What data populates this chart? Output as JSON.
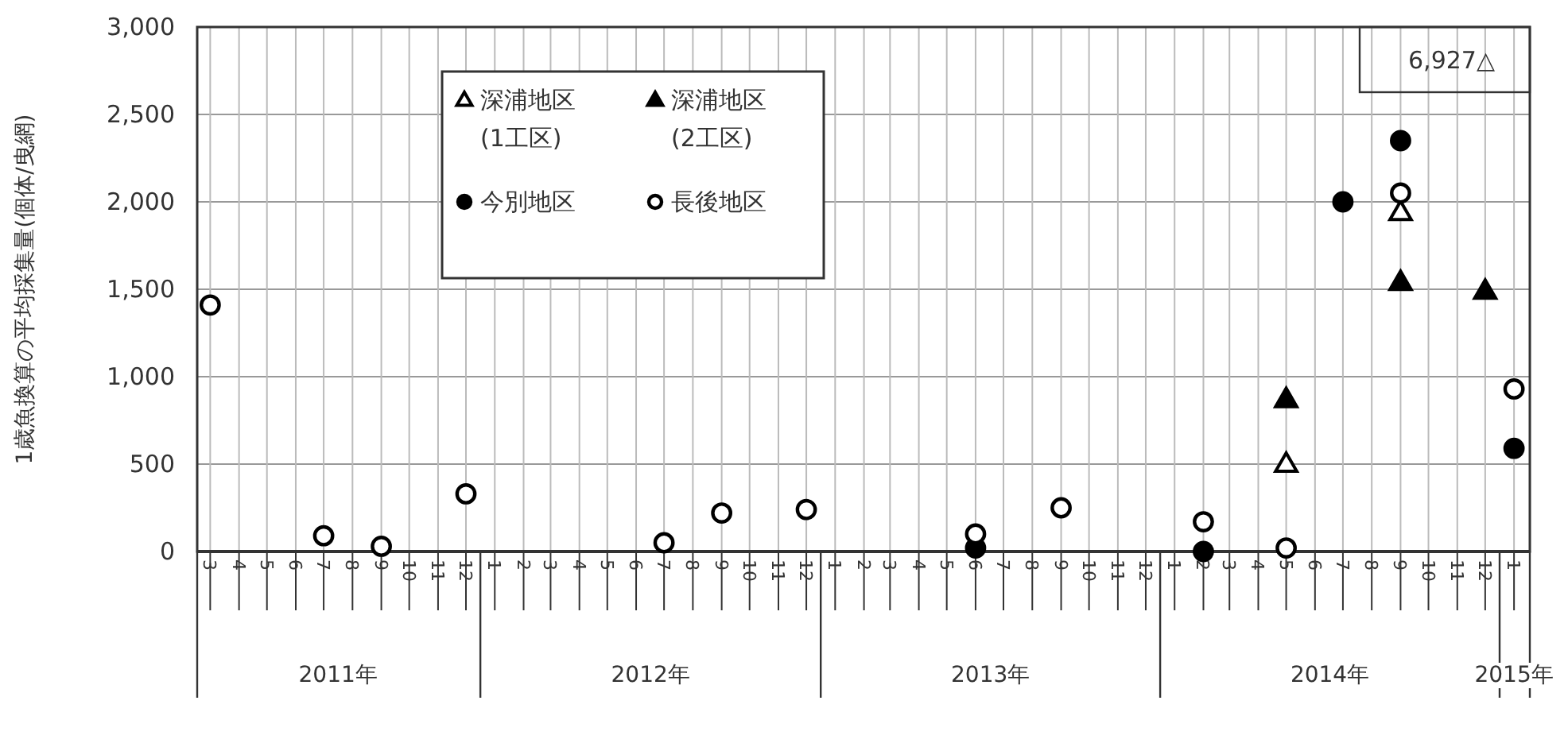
{
  "chart_data": {
    "type": "scatter",
    "ylabel": "1歳魚換算の平均採集量(個体/曳網)",
    "xlim": [
      "2011-03-01",
      "2015-02-01"
    ],
    "xticks": [
      {
        "value": "2011-03-15",
        "label": "3"
      },
      {
        "value": "2011-04-15",
        "label": "4"
      },
      {
        "value": "2011-05-15",
        "label": "5"
      },
      {
        "value": "2011-06-15",
        "label": "6"
      },
      {
        "value": "2011-07-15",
        "label": "7"
      },
      {
        "value": "2011-08-15",
        "label": "8"
      },
      {
        "value": "2011-09-15",
        "label": "9"
      },
      {
        "value": "2011-10-15",
        "label": "10"
      },
      {
        "value": "2011-11-15",
        "label": "11"
      },
      {
        "value": "2011-12-15",
        "label": "12"
      },
      {
        "value": "2012-01-15",
        "label": "1"
      },
      {
        "value": "2012-02-15",
        "label": "2"
      },
      {
        "value": "2012-03-15",
        "label": "3"
      },
      {
        "value": "2012-04-15",
        "label": "4"
      },
      {
        "value": "2012-05-15",
        "label": "5"
      },
      {
        "value": "2012-06-15",
        "label": "6"
      },
      {
        "value": "2012-07-15",
        "label": "7"
      },
      {
        "value": "2012-08-15",
        "label": "8"
      },
      {
        "value": "2012-09-15",
        "label": "9"
      },
      {
        "value": "2012-10-15",
        "label": "10"
      },
      {
        "value": "2012-11-15",
        "label": "11"
      },
      {
        "value": "2012-12-15",
        "label": "12"
      },
      {
        "value": "2013-01-15",
        "label": "1"
      },
      {
        "value": "2013-02-15",
        "label": "2"
      },
      {
        "value": "2013-03-15",
        "label": "3"
      },
      {
        "value": "2013-04-15",
        "label": "4"
      },
      {
        "value": "2013-05-15",
        "label": "5"
      },
      {
        "value": "2013-06-15",
        "label": "6"
      },
      {
        "value": "2013-07-15",
        "label": "7"
      },
      {
        "value": "2013-08-15",
        "label": "8"
      },
      {
        "value": "2013-09-15",
        "label": "9"
      },
      {
        "value": "2013-10-15",
        "label": "10"
      },
      {
        "value": "2013-11-15",
        "label": "11"
      },
      {
        "value": "2013-12-15",
        "label": "12"
      },
      {
        "value": "2014-01-15",
        "label": "1"
      },
      {
        "value": "2014-02-15",
        "label": "2"
      },
      {
        "value": "2014-03-15",
        "label": "3"
      },
      {
        "value": "2014-04-15",
        "label": "4"
      },
      {
        "value": "2014-05-15",
        "label": "5"
      },
      {
        "value": "2014-06-15",
        "label": "6"
      },
      {
        "value": "2014-07-15",
        "label": "7"
      },
      {
        "value": "2014-08-15",
        "label": "8"
      },
      {
        "value": "2014-09-15",
        "label": "9"
      },
      {
        "value": "2014-10-15",
        "label": "10"
      },
      {
        "value": "2014-11-15",
        "label": "11"
      },
      {
        "value": "2014-12-15",
        "label": "12"
      },
      {
        "value": "2015-01-15",
        "label": "1"
      }
    ],
    "ylim": [
      0,
      3000
    ],
    "yticks": [
      {
        "value": 0,
        "label": "0"
      },
      {
        "value": 500,
        "label": "500"
      },
      {
        "value": 1000,
        "label": "1,000"
      },
      {
        "value": 1500,
        "label": "1,500"
      },
      {
        "value": 2000,
        "label": "2,000"
      },
      {
        "value": 2500,
        "label": "2,500"
      },
      {
        "value": 3000,
        "label": "3,000"
      }
    ],
    "grid": true,
    "legend": "top",
    "annotations": [
      "2011年",
      "2012年",
      "2013年",
      "2014年",
      "2015年",
      "6,927△"
    ],
    "series": [
      {
        "name": "深浦地区 (1工区)",
        "marker": "triangle",
        "color": "#ffffff",
        "x": [
          "2014-05-15",
          "2014-09-15"
        ],
        "values": [
          500,
          1940
        ]
      },
      {
        "name": "深浦地区 (2工区)",
        "marker": "triangle",
        "color": "#000000",
        "x": [
          "2014-05-15",
          "2014-09-15",
          "2014-12-15"
        ],
        "values": [
          870,
          1540,
          1490
        ]
      },
      {
        "name": "今別地区",
        "marker": "circle",
        "color": "#000000",
        "x": [
          "2013-06-15",
          "2014-02-15",
          "2014-07-15",
          "2014-09-15",
          "2015-01-15"
        ],
        "values": [
          20,
          0,
          2000,
          2350,
          590
        ]
      },
      {
        "name": "長後地区",
        "marker": "circle",
        "color": "#ffffff",
        "x": [
          "2011-03-15",
          "2011-07-15",
          "2011-09-15",
          "2011-12-15",
          "2012-07-15",
          "2012-09-15",
          "2012-12-15",
          "2013-06-15",
          "2013-09-15",
          "2014-02-15",
          "2014-05-15",
          "2014-09-15",
          "2015-01-15"
        ],
        "values": [
          1410,
          90,
          30,
          330,
          50,
          220,
          240,
          100,
          250,
          170,
          20,
          2050,
          930
        ]
      }
    ]
  }
}
